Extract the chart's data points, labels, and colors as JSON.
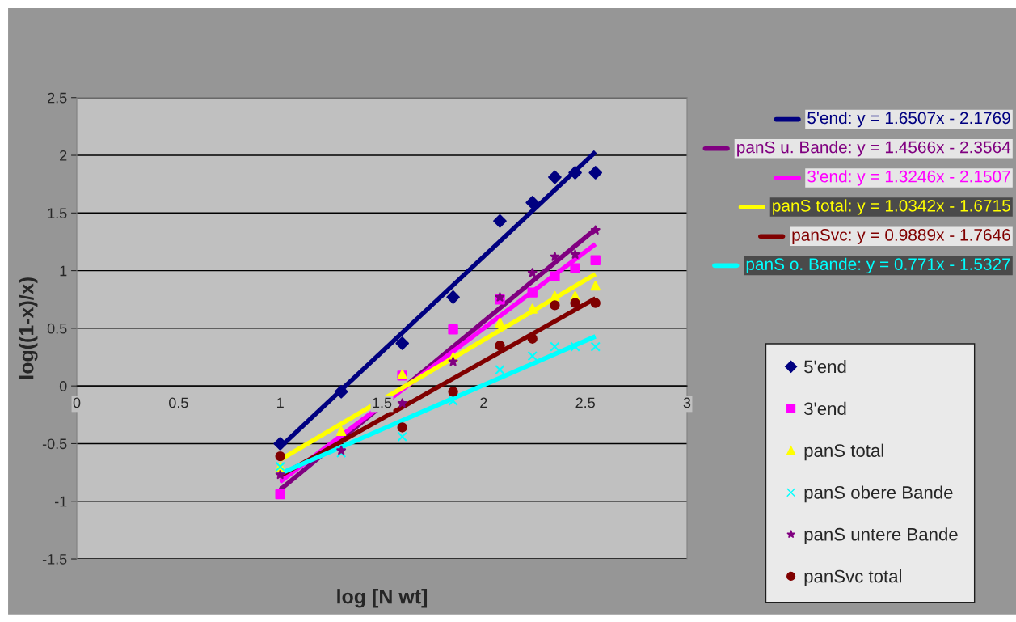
{
  "chart_data": {
    "type": "scatter",
    "xlabel": "log [N wt]",
    "ylabel": "log((1-x)/x)",
    "x": [
      1.0,
      1.3,
      1.6,
      1.85,
      2.08,
      2.24,
      2.35,
      2.45,
      2.55
    ],
    "xlim": [
      0,
      3
    ],
    "xticks": [
      0,
      0.5,
      1,
      1.5,
      2,
      2.5,
      3
    ],
    "ylim": [
      -1.5,
      2.5
    ],
    "yticks": [
      -1.5,
      -1,
      -0.5,
      0,
      0.5,
      1,
      1.5,
      2,
      2.5
    ],
    "grid": "y",
    "legend": "right",
    "series": [
      {
        "name": "5'end",
        "color": "#000080",
        "marker": "diamond",
        "values": [
          -0.5,
          -0.05,
          0.37,
          0.77,
          1.43,
          1.59,
          1.81,
          1.85,
          1.85
        ]
      },
      {
        "name": "3'end",
        "color": "#ff00ff",
        "marker": "square",
        "values": [
          -0.94,
          null,
          0.09,
          0.49,
          0.75,
          0.81,
          0.95,
          1.02,
          1.09
        ]
      },
      {
        "name": "panS total",
        "color": "#ffff00",
        "marker": "triangle",
        "values": [
          -0.7,
          -0.39,
          0.1,
          0.25,
          0.55,
          0.67,
          0.78,
          0.78,
          0.87
        ]
      },
      {
        "name": "panS obere Bande",
        "color": "#00ffff",
        "marker": "cross",
        "values": [
          -0.7,
          -0.58,
          -0.44,
          -0.13,
          0.14,
          0.26,
          0.34,
          0.34,
          0.34
        ]
      },
      {
        "name": "panS untere Bande",
        "color": "#800080",
        "marker": "star",
        "values": [
          -0.77,
          -0.56,
          -0.15,
          0.21,
          0.77,
          0.98,
          1.12,
          1.14,
          1.35
        ]
      },
      {
        "name": "panSvc total",
        "color": "#800000",
        "marker": "circle",
        "values": [
          -0.61,
          null,
          -0.36,
          -0.05,
          0.35,
          0.41,
          0.7,
          0.72,
          0.72
        ]
      },
      {
        "type": "line",
        "name": "5'end: y = 1.6507x - 2.1769",
        "color": "#000080",
        "values": [
          -0.53,
          null,
          null,
          null,
          null,
          null,
          null,
          null,
          2.03
        ]
      },
      {
        "type": "line",
        "name": "panS u. Bande: y = 1.4566x - 2.3564",
        "color": "#800080",
        "values": [
          -0.9,
          null,
          null,
          null,
          null,
          null,
          null,
          null,
          1.36
        ]
      },
      {
        "type": "line",
        "name": "3'end: y = 1.3246x - 2.1507",
        "color": "#ff00ff",
        "values": [
          -0.83,
          null,
          null,
          null,
          null,
          null,
          null,
          null,
          1.23
        ]
      },
      {
        "type": "line",
        "name": "panS total: y = 1.0342x - 1.6715",
        "color": "#ffff00",
        "values": [
          -0.64,
          null,
          null,
          null,
          null,
          null,
          null,
          null,
          0.97
        ]
      },
      {
        "type": "line",
        "name": "panSvc: y = 0.9889x - 1.7646",
        "color": "#800000",
        "values": [
          -0.78,
          null,
          null,
          null,
          null,
          null,
          null,
          null,
          0.76
        ]
      },
      {
        "type": "line",
        "name": "panS o. Bande: y = 0.771x - 1.5327",
        "color": "#00ffff",
        "values": [
          -0.76,
          null,
          null,
          null,
          null,
          null,
          null,
          null,
          0.43
        ]
      }
    ]
  }
}
